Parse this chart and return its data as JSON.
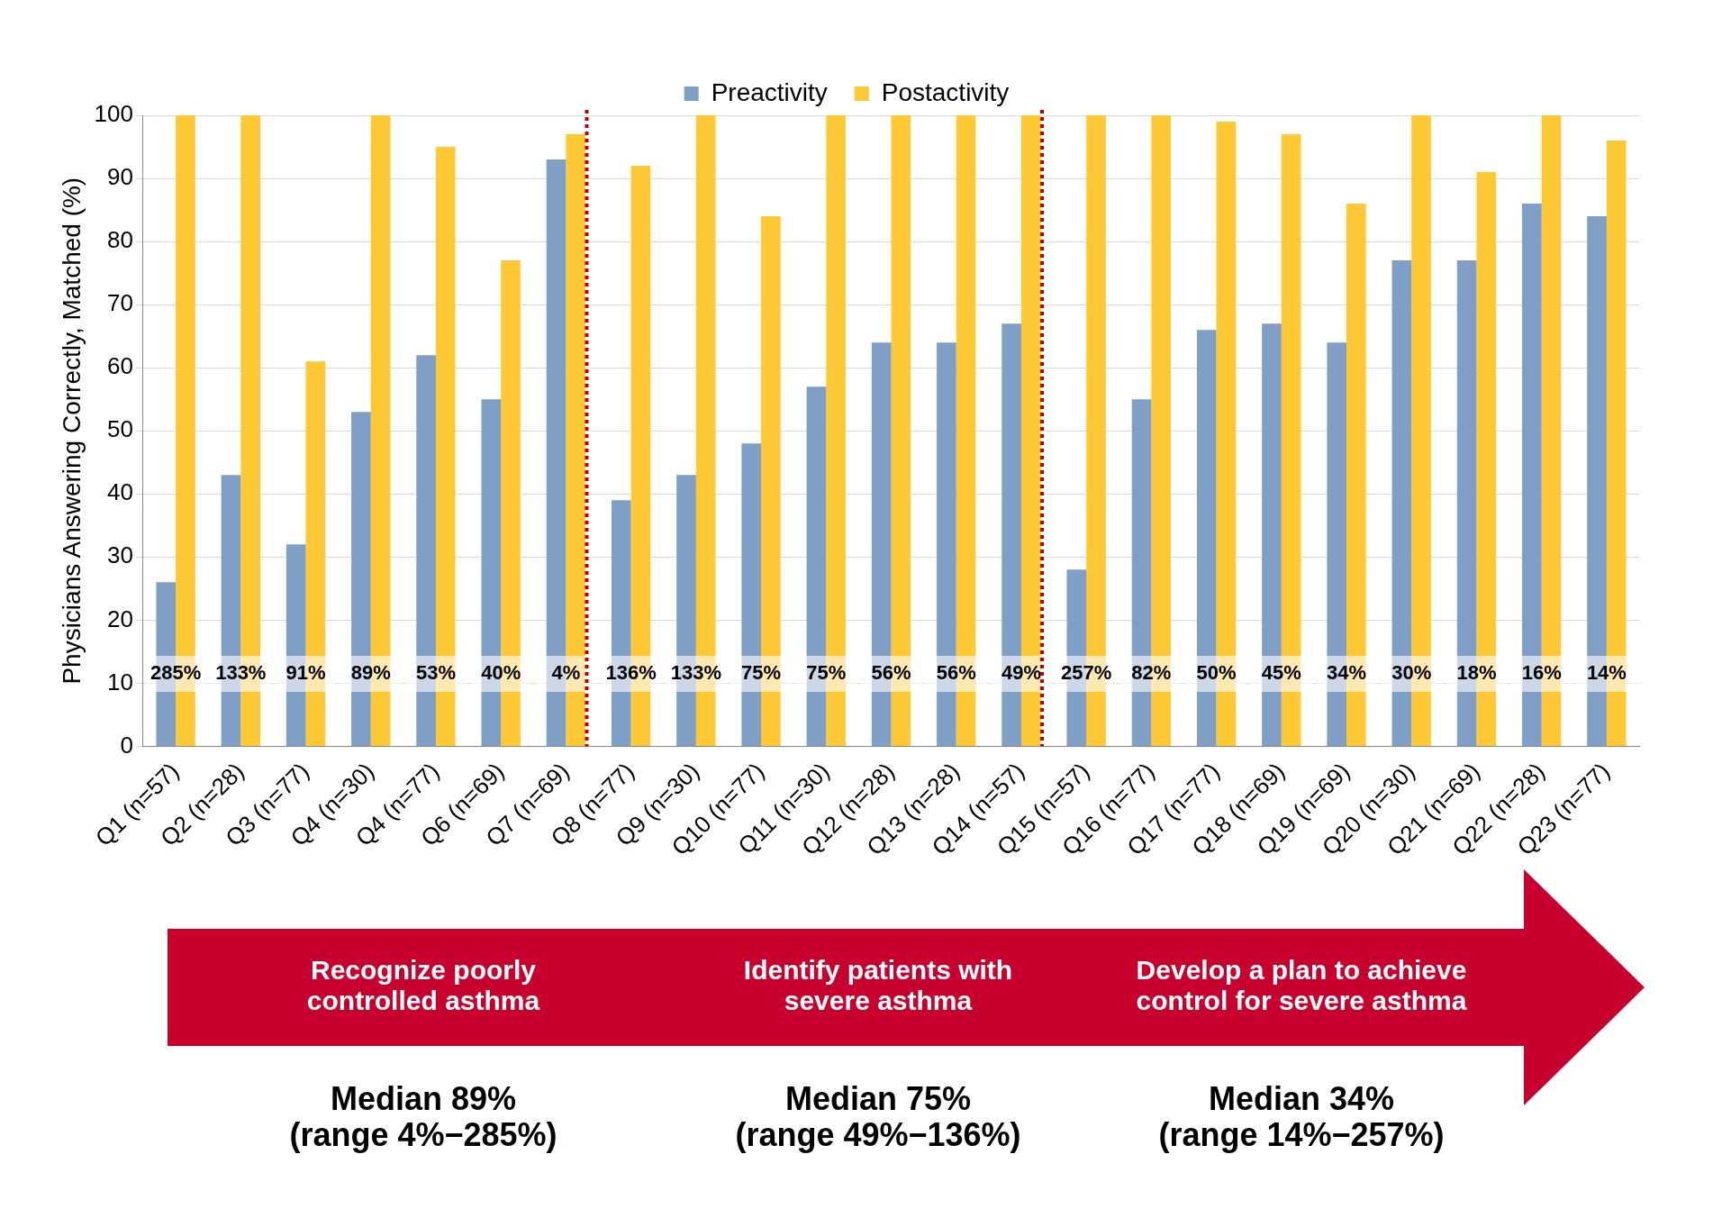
{
  "chart_data": {
    "type": "bar",
    "ylabel": "Physicians Answering Correctly, Matched (%)",
    "categories": [
      "Q1 (n=57)",
      "Q2 (n=28)",
      "Q3 (n=77)",
      "Q4 (n=30)",
      "Q4 (n=77)",
      "Q6 (n=69)",
      "Q7 (n=69)",
      "Q8 (n=77)",
      "Q9 (n=30)",
      "Q10 (n=77)",
      "Q11 (n=30)",
      "Q12 (n=28)",
      "Q13 (n=28)",
      "Q14 (n=57)",
      "Q15 (n=57)",
      "Q16 (n=77)",
      "Q17 (n=77)",
      "Q18 (n=69)",
      "Q19 (n=69)",
      "Q20 (n=30)",
      "Q21 (n=69)",
      "Q22 (n=28)",
      "Q23 (n=77)"
    ],
    "series": [
      {
        "name": "Preactivity",
        "color": "#7f9fc6",
        "values": [
          26,
          43,
          32,
          53,
          62,
          55,
          93,
          39,
          43,
          48,
          57,
          64,
          64,
          67,
          28,
          55,
          66,
          67,
          64,
          77,
          77,
          86,
          84
        ]
      },
      {
        "name": "Postactivity",
        "color": "#ffc935",
        "values": [
          100,
          100,
          61,
          100,
          95,
          77,
          97,
          92,
          100,
          84,
          100,
          100,
          100,
          100,
          100,
          100,
          99,
          97,
          86,
          100,
          91,
          100,
          96
        ]
      }
    ],
    "ylim": [
      0,
      100
    ],
    "yticks": [
      0,
      10,
      20,
      30,
      40,
      50,
      60,
      70,
      80,
      90,
      100
    ],
    "grid": "y",
    "legend": "top",
    "ref_lines": [
      {
        "axis": "x",
        "value": "Q7 (n=69)",
        "color": "#c00000",
        "line_style": "dotted"
      },
      {
        "axis": "x",
        "value": "Q14 (n=57)",
        "color": "#c00000",
        "line_style": "dotted"
      }
    ],
    "annotations": [
      {
        "text": "285%",
        "x": "Q1 (n=57)",
        "y": 11.5
      },
      {
        "text": "133%",
        "x": "Q2 (n=28)",
        "y": 11.5
      },
      {
        "text": "91%",
        "x": "Q3 (n=77)",
        "y": 11.5
      },
      {
        "text": "89%",
        "x": "Q4 (n=30)",
        "y": 11.5
      },
      {
        "text": "53%",
        "x": "Q4 (n=77)",
        "y": 11.5
      },
      {
        "text": "40%",
        "x": "Q6 (n=69)",
        "y": 11.5
      },
      {
        "text": "4%",
        "x": "Q7 (n=69)",
        "y": 11.5
      },
      {
        "text": "136%",
        "x": "Q8 (n=77)",
        "y": 11.5
      },
      {
        "text": "133%",
        "x": "Q9 (n=30)",
        "y": 11.5
      },
      {
        "text": "75%",
        "x": "Q10 (n=77)",
        "y": 11.5
      },
      {
        "text": "75%",
        "x": "Q11 (n=30)",
        "y": 11.5
      },
      {
        "text": "56%",
        "x": "Q12 (n=28)",
        "y": 11.5
      },
      {
        "text": "56%",
        "x": "Q13 (n=28)",
        "y": 11.5
      },
      {
        "text": "49%",
        "x": "Q14 (n=57)",
        "y": 11.5
      },
      {
        "text": "257%",
        "x": "Q15 (n=57)",
        "y": 11.5
      },
      {
        "text": "82%",
        "x": "Q16 (n=77)",
        "y": 11.5
      },
      {
        "text": "50%",
        "x": "Q17 (n=77)",
        "y": 11.5
      },
      {
        "text": "45%",
        "x": "Q18 (n=69)",
        "y": 11.5
      },
      {
        "text": "34%",
        "x": "Q19 (n=69)",
        "y": 11.5
      },
      {
        "text": "30%",
        "x": "Q20 (n=30)",
        "y": 11.5
      },
      {
        "text": "18%",
        "x": "Q21 (n=69)",
        "y": 11.5
      },
      {
        "text": "16%",
        "x": "Q22 (n=28)",
        "y": 11.5
      },
      {
        "text": "14%",
        "x": "Q23 (n=77)",
        "y": 11.5
      },
      "Recognize poorly controlled asthma",
      "Identify patients with severe asthma",
      "Develop a plan to achieve control for severe asthma",
      "Median 89%\n(range 4%−285%)",
      "Median 75%\n(range 49%−136%)",
      "Median 34%\n(range 14%−257%)"
    ]
  }
}
